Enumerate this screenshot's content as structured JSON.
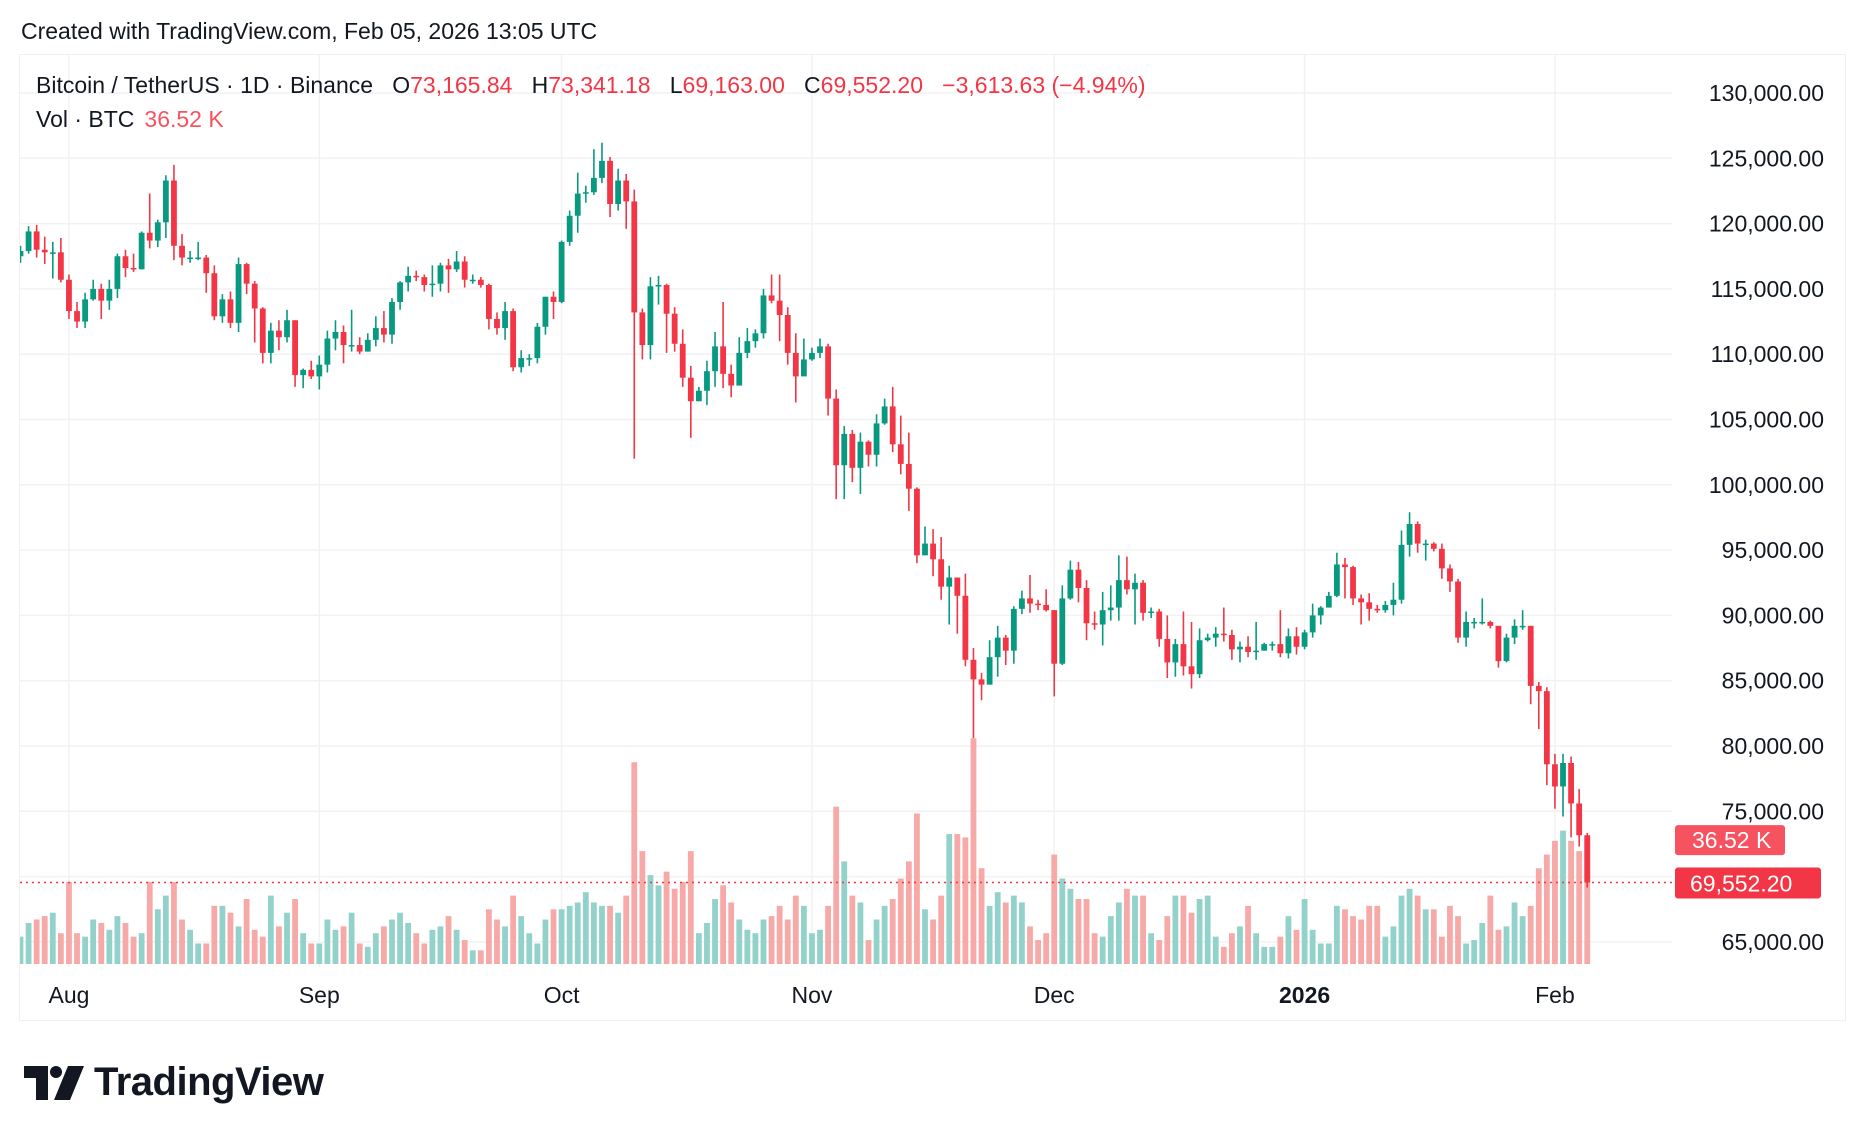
{
  "header": {
    "created": "Created with TradingView.com, Feb 05, 2026 13:05 UTC"
  },
  "legend": {
    "symbol": "Bitcoin / TetherUS · 1D · Binance",
    "open_label": "O",
    "open": "73,165.84",
    "high_label": "H",
    "high": "73,341.18",
    "low_label": "L",
    "low": "69,163.00",
    "close_label": "C",
    "close": "69,552.20",
    "change": "−3,613.63 (−4.94%)",
    "vol_label": "Vol · BTC",
    "vol_value": "36.52 K"
  },
  "price_badge": "69,552.20",
  "volume_badge": "36.52 K",
  "logo": {
    "text": "TradingView"
  },
  "colors": {
    "up": "#089981",
    "down": "#f23645",
    "up_volume": "#93d2ca",
    "down_volume": "#f7a9a7",
    "grid": "#f2f2f4"
  },
  "chart_data": {
    "type": "candlestick",
    "title": "Bitcoin / TetherUS · 1D · Binance",
    "start_date": "2025-07-26",
    "end_date": "2026-02-05",
    "ylim": [
      65000,
      130000
    ],
    "y_ticks": [
      "130,000.00",
      "125,000.00",
      "120,000.00",
      "115,000.00",
      "110,000.00",
      "105,000.00",
      "100,000.00",
      "95,000.00",
      "90,000.00",
      "85,000.00",
      "80,000.00",
      "75,000.00",
      "65,000.00"
    ],
    "y_tick_values": [
      130000,
      125000,
      120000,
      115000,
      110000,
      105000,
      100000,
      95000,
      90000,
      85000,
      80000,
      75000,
      65000
    ],
    "x_ticks": [
      {
        "label": "Aug",
        "date": "2025-08-01",
        "bold": false
      },
      {
        "label": "Sep",
        "date": "2025-09-01",
        "bold": false
      },
      {
        "label": "Oct",
        "date": "2025-10-01",
        "bold": false
      },
      {
        "label": "Nov",
        "date": "2025-11-01",
        "bold": false
      },
      {
        "label": "Dec",
        "date": "2025-12-01",
        "bold": false
      },
      {
        "label": "2026",
        "date": "2026-01-01",
        "bold": true
      },
      {
        "label": "Feb",
        "date": "2026-02-01",
        "bold": false
      }
    ],
    "grid": true,
    "last_price": 69552.2,
    "last_volume_k": 36.52,
    "ohlc": [
      [
        117500,
        118300,
        117000,
        117900
      ],
      [
        117900,
        119800,
        117700,
        119400
      ],
      [
        119400,
        119900,
        117400,
        118000
      ],
      [
        118000,
        119000,
        116900,
        117800
      ],
      [
        117800,
        118600,
        115800,
        117800
      ],
      [
        117800,
        118900,
        115500,
        115700
      ],
      [
        115700,
        116100,
        112700,
        113300
      ],
      [
        113300,
        114000,
        112000,
        112500
      ],
      [
        112500,
        114700,
        112000,
        114200
      ],
      [
        114200,
        115700,
        114100,
        115000
      ],
      [
        115000,
        115400,
        112700,
        114100
      ],
      [
        114100,
        115700,
        113400,
        115000
      ],
      [
        115000,
        117700,
        114300,
        117500
      ],
      [
        117500,
        118000,
        115900,
        116600
      ],
      [
        116600,
        117700,
        116300,
        116500
      ],
      [
        116500,
        119400,
        116500,
        119300
      ],
      [
        119300,
        122300,
        118100,
        118700
      ],
      [
        118700,
        120300,
        118200,
        120100
      ],
      [
        120100,
        123700,
        118900,
        123300
      ],
      [
        123300,
        124500,
        117200,
        118300
      ],
      [
        118300,
        119200,
        116800,
        117400
      ],
      [
        117400,
        117900,
        117000,
        117400
      ],
      [
        117400,
        118600,
        117200,
        117400
      ],
      [
        117400,
        117600,
        114700,
        116200
      ],
      [
        116200,
        116800,
        112600,
        112900
      ],
      [
        112900,
        114600,
        112400,
        114200
      ],
      [
        114200,
        114800,
        112000,
        112400
      ],
      [
        112400,
        117400,
        111700,
        116900
      ],
      [
        116900,
        117000,
        114600,
        115400
      ],
      [
        115400,
        115600,
        110900,
        113500
      ],
      [
        113500,
        113600,
        109300,
        110100
      ],
      [
        110100,
        112400,
        109300,
        111800
      ],
      [
        111800,
        112600,
        110300,
        111300
      ],
      [
        111300,
        113400,
        110900,
        112600
      ],
      [
        112600,
        112600,
        107500,
        108400
      ],
      [
        108400,
        108900,
        107400,
        108800
      ],
      [
        108800,
        109500,
        108100,
        108300
      ],
      [
        108300,
        109900,
        107300,
        109200
      ],
      [
        109200,
        111800,
        108600,
        111200
      ],
      [
        111200,
        112600,
        110300,
        111700
      ],
      [
        111700,
        112200,
        109300,
        110700
      ],
      [
        110700,
        113400,
        110200,
        110700
      ],
      [
        110700,
        111300,
        110000,
        110200
      ],
      [
        110200,
        111600,
        110200,
        111100
      ],
      [
        111100,
        112900,
        110600,
        112000
      ],
      [
        112000,
        113300,
        110900,
        111500
      ],
      [
        111500,
        114300,
        110800,
        114000
      ],
      [
        114000,
        115600,
        113400,
        115500
      ],
      [
        115500,
        116700,
        114800,
        116000
      ],
      [
        116000,
        116400,
        115600,
        115900
      ],
      [
        115900,
        116100,
        114800,
        115300
      ],
      [
        115300,
        116800,
        114400,
        115400
      ],
      [
        115400,
        117000,
        114800,
        116800
      ],
      [
        116800,
        117300,
        114700,
        116500
      ],
      [
        116500,
        117900,
        116300,
        117100
      ],
      [
        117100,
        117500,
        115100,
        115700
      ],
      [
        115700,
        116100,
        115400,
        115700
      ],
      [
        115700,
        115900,
        115100,
        115300
      ],
      [
        115300,
        115400,
        111900,
        112700
      ],
      [
        112700,
        113200,
        111500,
        112000
      ],
      [
        112000,
        114000,
        111100,
        113300
      ],
      [
        113300,
        113500,
        108700,
        109000
      ],
      [
        109000,
        110300,
        108600,
        109700
      ],
      [
        109700,
        110000,
        109100,
        109700
      ],
      [
        109700,
        112400,
        109300,
        112100
      ],
      [
        112100,
        114400,
        111500,
        114400
      ],
      [
        114400,
        114800,
        112700,
        114000
      ],
      [
        114000,
        118700,
        113900,
        118600
      ],
      [
        118600,
        121000,
        118300,
        120600
      ],
      [
        120600,
        123900,
        119300,
        122300
      ],
      [
        122300,
        122900,
        121600,
        122400
      ],
      [
        122400,
        125700,
        122200,
        123500
      ],
      [
        123500,
        126200,
        123100,
        124800
      ],
      [
        124800,
        125100,
        120500,
        121500
      ],
      [
        121500,
        124200,
        121000,
        123300
      ],
      [
        123300,
        123800,
        119600,
        121700
      ],
      [
        121700,
        122600,
        102000,
        113200
      ],
      [
        113200,
        113500,
        109600,
        110700
      ],
      [
        110700,
        115900,
        109600,
        115200
      ],
      [
        115200,
        116000,
        113800,
        115300
      ],
      [
        115300,
        115400,
        110100,
        113100
      ],
      [
        113100,
        113600,
        110200,
        110800
      ],
      [
        110800,
        111900,
        107500,
        108200
      ],
      [
        108200,
        109100,
        103600,
        106400
      ],
      [
        106400,
        107500,
        106400,
        107200
      ],
      [
        107200,
        109500,
        106100,
        108700
      ],
      [
        108700,
        111700,
        107500,
        110600
      ],
      [
        110600,
        114000,
        107400,
        108500
      ],
      [
        108500,
        109200,
        106700,
        107600
      ],
      [
        107600,
        111300,
        107600,
        110100
      ],
      [
        110100,
        112000,
        109700,
        111000
      ],
      [
        111000,
        111900,
        110500,
        111600
      ],
      [
        111600,
        115000,
        111200,
        114500
      ],
      [
        114500,
        116100,
        113900,
        114100
      ],
      [
        114100,
        116100,
        111000,
        113000
      ],
      [
        113000,
        113600,
        109200,
        110100
      ],
      [
        110100,
        111600,
        106300,
        108300
      ],
      [
        108300,
        111200,
        108700,
        109600
      ],
      [
        109600,
        110500,
        109500,
        110100
      ],
      [
        110100,
        111200,
        109700,
        110600
      ],
      [
        110600,
        110800,
        105300,
        106600
      ],
      [
        106600,
        107300,
        98900,
        101500
      ],
      [
        101500,
        104500,
        98900,
        103900
      ],
      [
        103900,
        104200,
        100200,
        101300
      ],
      [
        101300,
        104000,
        99300,
        103300
      ],
      [
        103300,
        103400,
        101400,
        102300
      ],
      [
        102300,
        105400,
        101400,
        104700
      ],
      [
        104700,
        106600,
        104600,
        106000
      ],
      [
        106000,
        107500,
        102500,
        103100
      ],
      [
        103100,
        105300,
        100800,
        101600
      ],
      [
        101600,
        104000,
        98000,
        99700
      ],
      [
        99700,
        99800,
        94000,
        94600
      ],
      [
        94600,
        96800,
        94600,
        95500
      ],
      [
        95500,
        96600,
        93000,
        94300
      ],
      [
        94300,
        96000,
        91200,
        92200
      ],
      [
        92200,
        93800,
        89300,
        92900
      ],
      [
        92900,
        92900,
        88600,
        91500
      ],
      [
        91500,
        93200,
        86100,
        86600
      ],
      [
        86600,
        87500,
        80600,
        85100
      ],
      [
        85100,
        85600,
        83500,
        84700
      ],
      [
        84700,
        88100,
        84700,
        86800
      ],
      [
        86800,
        89200,
        85300,
        88300
      ],
      [
        88300,
        88500,
        86200,
        87300
      ],
      [
        87300,
        90700,
        86300,
        90500
      ],
      [
        90500,
        91900,
        90100,
        91300
      ],
      [
        91300,
        93100,
        90200,
        90900
      ],
      [
        90900,
        91200,
        90400,
        90800
      ],
      [
        90800,
        92000,
        90300,
        90400
      ],
      [
        90400,
        90400,
        83800,
        86300
      ],
      [
        86300,
        92300,
        86200,
        91300
      ],
      [
        91300,
        94200,
        91200,
        93500
      ],
      [
        93500,
        94100,
        91000,
        92100
      ],
      [
        92100,
        92700,
        88100,
        89400
      ],
      [
        89400,
        90300,
        88900,
        89300
      ],
      [
        89300,
        91800,
        87700,
        90400
      ],
      [
        90400,
        92300,
        89600,
        90600
      ],
      [
        90600,
        94600,
        89600,
        92700
      ],
      [
        92700,
        94500,
        91600,
        92000
      ],
      [
        92000,
        93200,
        89300,
        92500
      ],
      [
        92500,
        92700,
        89600,
        90200
      ],
      [
        90200,
        90600,
        89800,
        90300
      ],
      [
        90300,
        90500,
        87600,
        88200
      ],
      [
        88200,
        90000,
        85200,
        86400
      ],
      [
        86400,
        88200,
        85300,
        87800
      ],
      [
        87800,
        90300,
        85400,
        86100
      ],
      [
        86100,
        89500,
        84400,
        85500
      ],
      [
        85500,
        89000,
        85200,
        88100
      ],
      [
        88100,
        88600,
        88000,
        88300
      ],
      [
        88300,
        89100,
        87600,
        88600
      ],
      [
        88600,
        90600,
        88000,
        88500
      ],
      [
        88500,
        88900,
        86600,
        87400
      ],
      [
        87400,
        88000,
        86400,
        87600
      ],
      [
        87600,
        88400,
        86800,
        87200
      ],
      [
        87200,
        89500,
        86600,
        87300
      ],
      [
        87300,
        87900,
        87300,
        87800
      ],
      [
        87800,
        88000,
        87300,
        87800
      ],
      [
        87800,
        90400,
        86800,
        87100
      ],
      [
        87100,
        89000,
        86700,
        88400
      ],
      [
        88400,
        89100,
        87000,
        87600
      ],
      [
        87600,
        88900,
        87400,
        88700
      ],
      [
        88700,
        90900,
        88300,
        90000
      ],
      [
        90000,
        90700,
        89300,
        90600
      ],
      [
        90600,
        91800,
        90600,
        91500
      ],
      [
        91500,
        94800,
        91400,
        93900
      ],
      [
        93900,
        94400,
        91300,
        93700
      ],
      [
        93700,
        93800,
        90800,
        91300
      ],
      [
        91300,
        91600,
        89300,
        91000
      ],
      [
        91000,
        91700,
        89600,
        90500
      ],
      [
        90500,
        90800,
        90200,
        90400
      ],
      [
        90400,
        91100,
        90200,
        90800
      ],
      [
        90800,
        92500,
        90000,
        91200
      ],
      [
        91200,
        96500,
        90900,
        95400
      ],
      [
        95400,
        97900,
        94500,
        97000
      ],
      [
        97000,
        97200,
        94800,
        95500
      ],
      [
        95500,
        95800,
        94200,
        95500
      ],
      [
        95500,
        95600,
        94900,
        95100
      ],
      [
        95100,
        95500,
        92800,
        93600
      ],
      [
        93600,
        93900,
        91800,
        92600
      ],
      [
        92600,
        92800,
        87900,
        88300
      ],
      [
        88300,
        90300,
        87600,
        89500
      ],
      [
        89500,
        89800,
        89000,
        89500
      ],
      [
        89500,
        91300,
        89300,
        89500
      ],
      [
        89500,
        89600,
        89000,
        89200
      ],
      [
        89200,
        89200,
        86000,
        86500
      ],
      [
        86500,
        88600,
        86400,
        88300
      ],
      [
        88300,
        89700,
        87800,
        89200
      ],
      [
        89200,
        90400,
        88900,
        89200
      ],
      [
        89200,
        89200,
        83200,
        84600
      ],
      [
        84600,
        84900,
        81300,
        84200
      ],
      [
        84200,
        84500,
        77000,
        78600
      ],
      [
        78600,
        79400,
        75200,
        76900
      ],
      [
        76900,
        79400,
        74600,
        78700
      ],
      [
        78700,
        79200,
        73000,
        75600
      ],
      [
        75600,
        76700,
        72300,
        73165.84
      ],
      [
        73165.84,
        73341.18,
        69163.0,
        69552.2
      ]
    ],
    "volume_k": [
      8,
      12,
      13,
      14,
      15,
      9,
      24,
      9,
      8,
      13,
      12,
      10,
      14,
      12,
      8,
      9,
      24,
      16,
      20,
      24,
      13,
      10,
      6,
      6,
      17,
      17,
      15,
      11,
      19,
      10,
      8,
      20,
      11,
      15,
      19,
      9,
      6,
      6,
      13,
      10,
      11,
      15,
      6,
      5,
      9,
      11,
      13,
      15,
      12,
      9,
      6,
      10,
      11,
      14,
      10,
      7,
      4,
      4,
      16,
      13,
      11,
      20,
      14,
      9,
      6,
      13,
      16,
      16,
      17,
      18,
      21,
      18,
      17,
      17,
      15,
      20,
      59,
      33,
      26,
      23,
      27,
      22,
      24,
      33,
      9,
      12,
      19,
      23,
      18,
      13,
      10,
      9,
      13,
      14,
      17,
      13,
      20,
      17,
      9,
      10,
      17,
      46,
      30,
      20,
      18,
      7,
      13,
      17,
      19,
      25,
      30,
      44,
      16,
      13,
      20,
      38,
      38,
      37,
      66,
      28,
      17,
      21,
      18,
      20,
      18,
      11,
      7,
      9,
      32,
      25,
      22,
      19,
      19,
      9,
      8,
      14,
      18,
      22,
      20,
      20,
      9,
      7,
      14,
      20,
      20,
      15,
      19,
      20,
      8,
      5,
      9,
      11,
      17,
      9,
      5,
      5,
      8,
      14,
      10,
      19,
      10,
      6,
      6,
      17,
      16,
      14,
      13,
      17,
      17,
      8,
      11,
      20,
      22,
      20,
      16,
      16,
      8,
      17,
      14,
      6,
      7,
      12,
      20,
      10,
      11,
      18,
      14,
      17,
      28,
      32,
      36,
      39,
      36,
      33,
      36.52
    ]
  }
}
